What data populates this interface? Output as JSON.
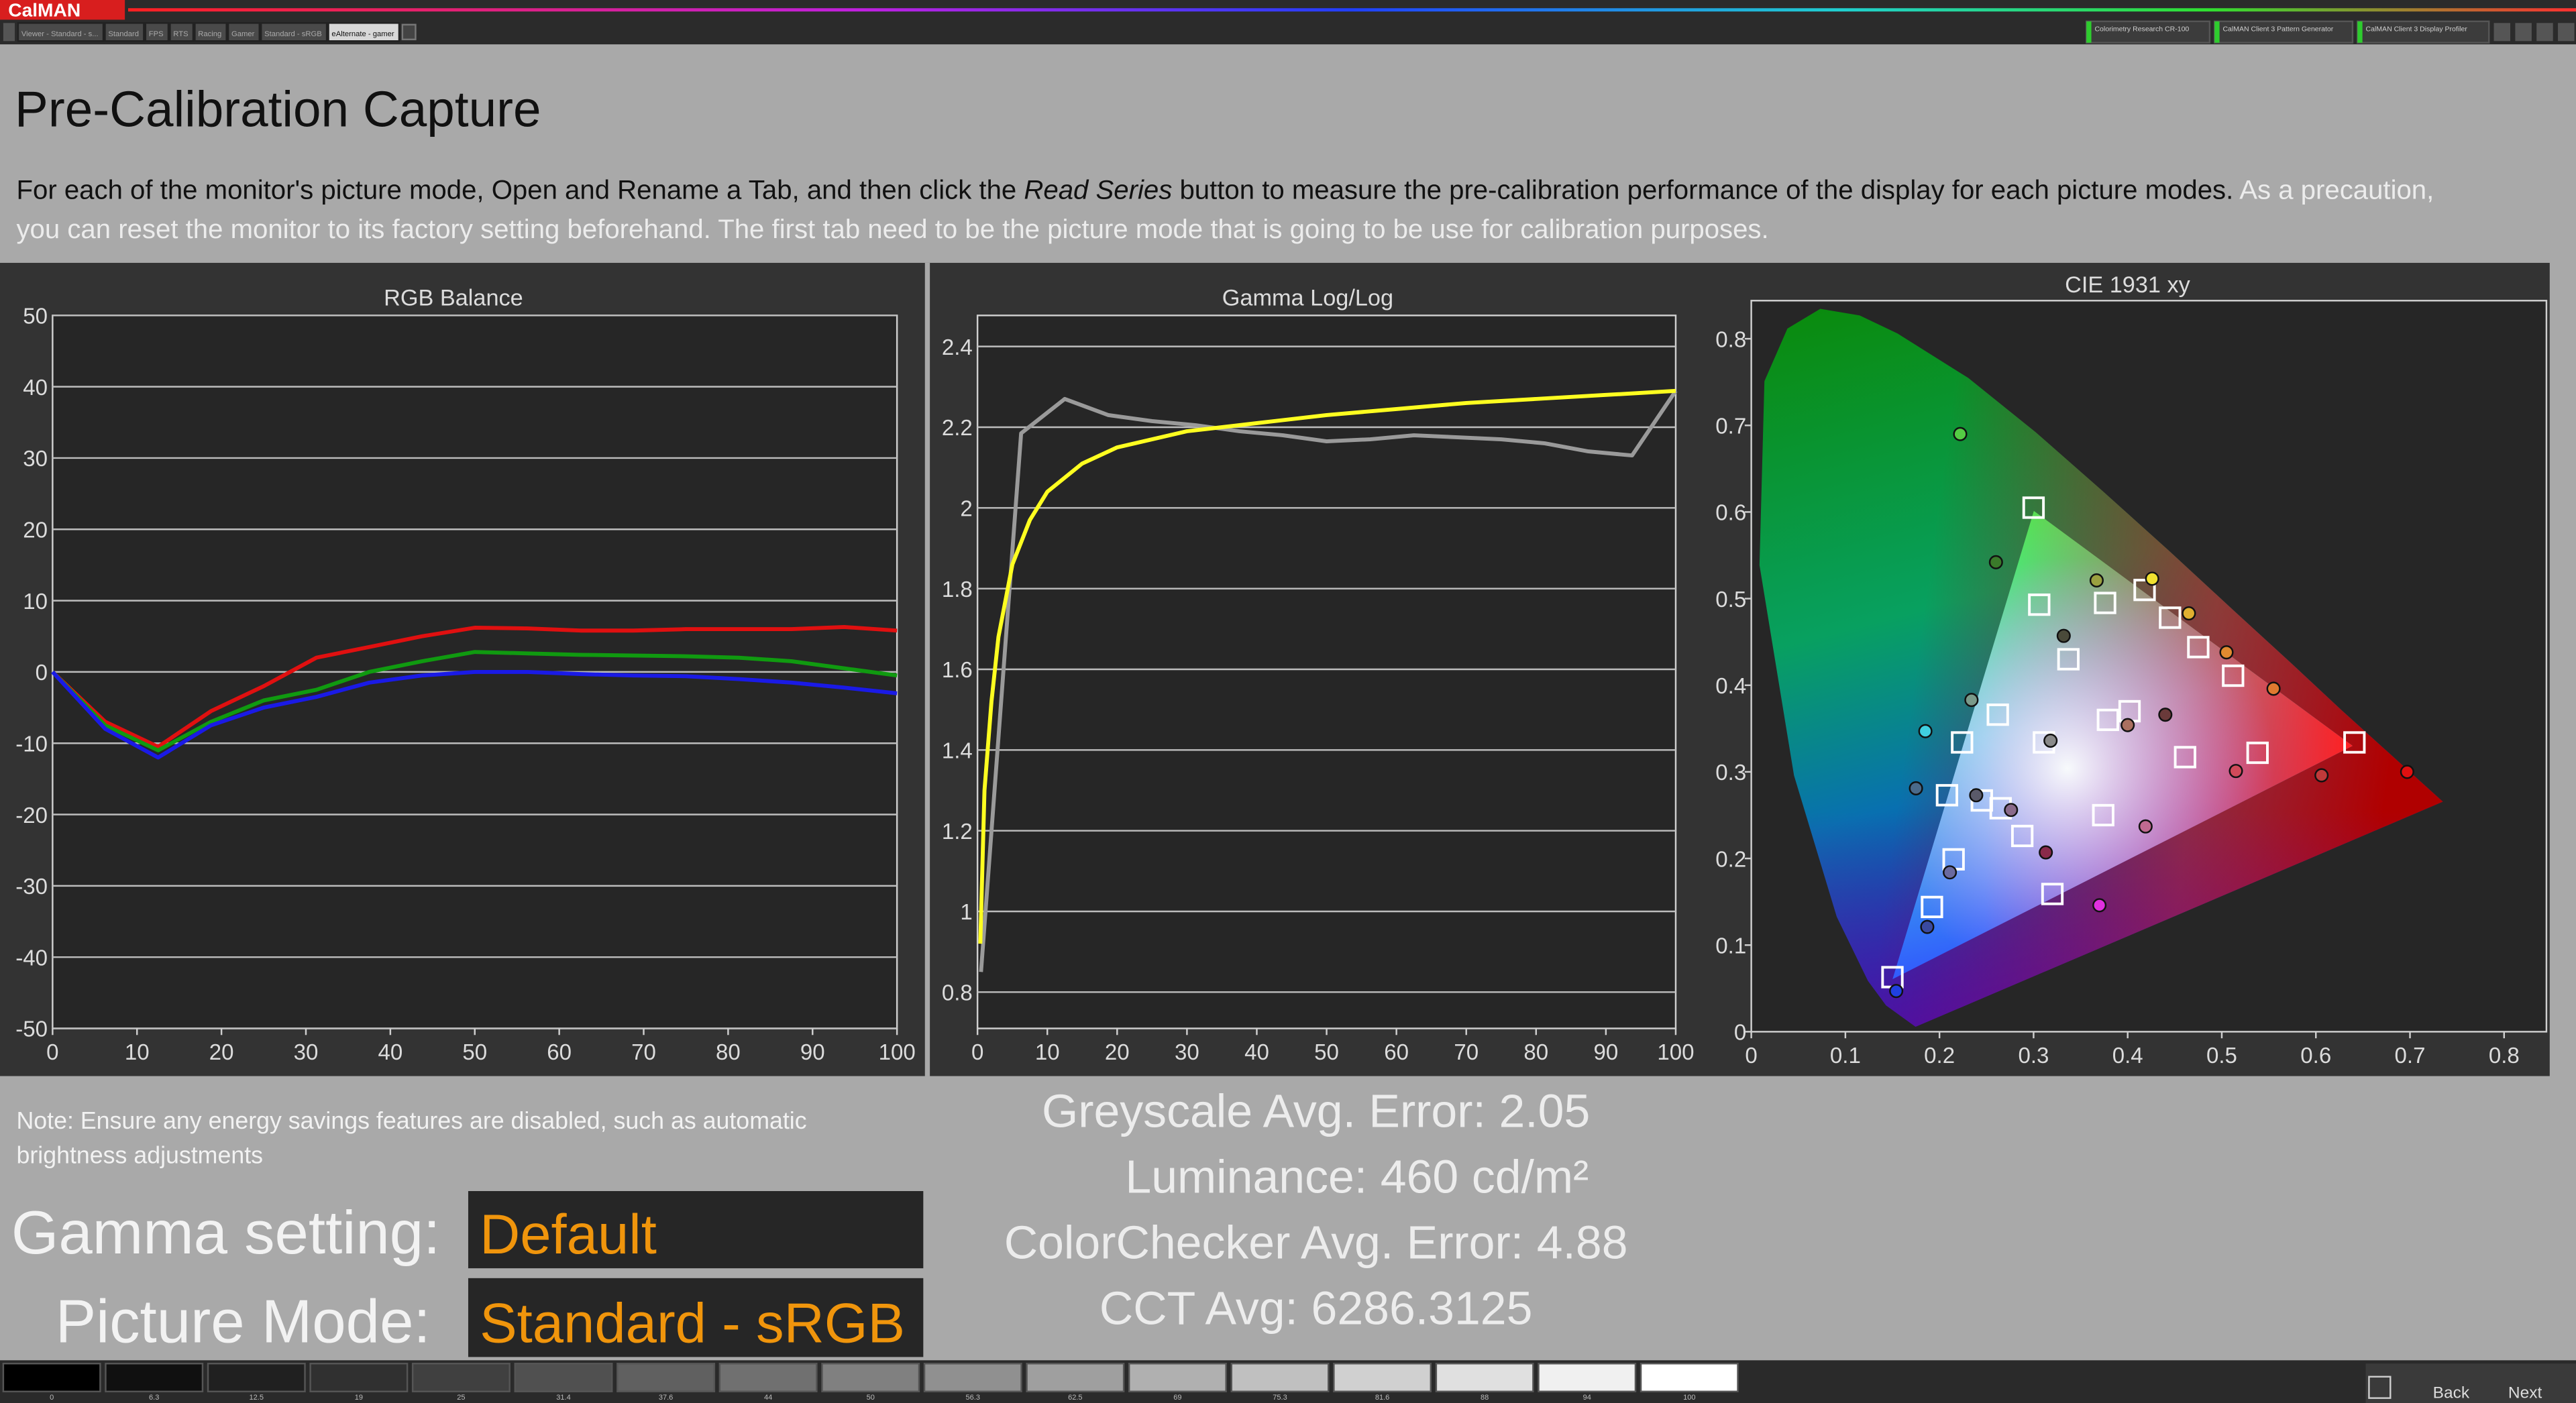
{
  "app": {
    "name": "CalMAN",
    "tabs": [
      "Viewer - Standard - s...",
      "Standard",
      "FPS",
      "RTS",
      "Racing",
      "Gamer",
      "Standard - sRGB",
      "eAlternate - gamer"
    ],
    "devices": [
      "Colorimetry Research CR-100",
      "CalMAN Client 3 Pattern Generator",
      "CalMAN Client 3 Display Profiler"
    ]
  },
  "page": {
    "title": "Pre-Calibration Capture",
    "description": [
      "For each of the monitor's picture mode, Open and Rename a Tab, and then click the ",
      "Read Series",
      " button to measure the pre-calibration performance of the display for each picture modes.",
      " As a precaution, you can reset the monitor to its factory setting beforehand. The first tab need to be the picture mode that is going to be use for calibration purposes."
    ],
    "note": "Note: Ensure any energy savings features are disabled, such as automatic brightness adjustments"
  },
  "chart_data": [
    {
      "type": "line",
      "title": "RGB Balance",
      "x": [
        0,
        6.25,
        12.5,
        18.75,
        25,
        31.25,
        37.5,
        43.75,
        50,
        56.25,
        62.5,
        68.75,
        75,
        81.25,
        87.5,
        93.75,
        100
      ],
      "series": [
        {
          "color": "#e01010",
          "values": [
            0,
            -7,
            -10.5,
            -5.5,
            -2,
            2,
            3.5,
            5,
            6.2,
            6.1,
            5.8,
            5.8,
            6,
            6,
            6,
            6.3,
            5.8
          ]
        },
        {
          "color": "#109a10",
          "values": [
            0,
            -7.5,
            -11,
            -7,
            -4,
            -2.5,
            0,
            1.5,
            2.8,
            2.6,
            2.4,
            2.3,
            2.2,
            2,
            1.5,
            0.5,
            -0.5
          ]
        },
        {
          "color": "#1a1ae6",
          "values": [
            0,
            -8,
            -12,
            -7.5,
            -5,
            -3.5,
            -1.5,
            -0.5,
            0,
            0,
            -0.3,
            -0.5,
            -0.6,
            -1,
            -1.5,
            -2.2,
            -3
          ]
        }
      ],
      "xlim": [
        0,
        100
      ],
      "ylim": [
        -50,
        50
      ],
      "xticks": [
        0,
        10,
        20,
        30,
        40,
        50,
        60,
        70,
        80,
        90,
        100
      ],
      "yticks": [
        -50,
        -40,
        -30,
        -20,
        -10,
        0,
        10,
        20,
        30,
        40,
        50
      ],
      "grid": true
    },
    {
      "type": "line",
      "title": "Gamma Log/Log",
      "series": [
        {
          "color": "#9a9a9a",
          "x": [
            0.5,
            6.25,
            12.5,
            18.75,
            25,
            31.25,
            37.5,
            43.75,
            50,
            56.25,
            62.5,
            68.75,
            75,
            81.25,
            87.5,
            93.75,
            100
          ],
          "values": [
            0.85,
            2.185,
            2.27,
            2.23,
            2.215,
            2.205,
            2.19,
            2.18,
            2.165,
            2.17,
            2.18,
            2.175,
            2.17,
            2.16,
            2.14,
            2.13,
            2.29
          ]
        },
        {
          "color": "#ffff20",
          "x": [
            0.4,
            1,
            2,
            3,
            5,
            7.5,
            10,
            15,
            20,
            30,
            40,
            50,
            60,
            70,
            80,
            90,
            100
          ],
          "values": [
            0.92,
            1.3,
            1.52,
            1.68,
            1.86,
            1.97,
            2.04,
            2.11,
            2.15,
            2.19,
            2.21,
            2.23,
            2.245,
            2.26,
            2.27,
            2.28,
            2.29
          ]
        }
      ],
      "xlim": [
        0,
        100
      ],
      "ylim": [
        0.71,
        2.477
      ],
      "xticks": [
        0,
        10,
        20,
        30,
        40,
        50,
        60,
        70,
        80,
        90,
        100
      ],
      "yticks": [
        0.8,
        1,
        1.2,
        1.4,
        1.6,
        1.8,
        2,
        2.2,
        2.4
      ],
      "grid": true
    },
    {
      "type": "scatter",
      "title": "CIE 1931 xy",
      "series": [
        {
          "marker": "square",
          "color": "#ffffff",
          "x": [
            0.3,
            0.641,
            0.15,
            0.311,
            0.306,
            0.376,
            0.418,
            0.445,
            0.475,
            0.512,
            0.337,
            0.262,
            0.224,
            0.208,
            0.245,
            0.265,
            0.288,
            0.215,
            0.192,
            0.32,
            0.374,
            0.379,
            0.402,
            0.461,
            0.538
          ],
          "values": [
            0.605,
            0.334,
            0.063,
            0.334,
            0.493,
            0.495,
            0.51,
            0.478,
            0.444,
            0.411,
            0.43,
            0.366,
            0.334,
            0.273,
            0.267,
            0.258,
            0.226,
            0.199,
            0.144,
            0.159,
            0.25,
            0.36,
            0.37,
            0.317,
            0.322
          ]
        },
        {
          "marker": "circle",
          "x": [
            0.222,
            0.26,
            0.332,
            0.367,
            0.426,
            0.465,
            0.505,
            0.555,
            0.44,
            0.4,
            0.318,
            0.234,
            0.185,
            0.175,
            0.239,
            0.276,
            0.313,
            0.211,
            0.187,
            0.37,
            0.419,
            0.515,
            0.606,
            0.697,
            0.154
          ],
          "values": [
            0.69,
            0.542,
            0.457,
            0.521,
            0.523,
            0.483,
            0.438,
            0.396,
            0.366,
            0.354,
            0.336,
            0.383,
            0.347,
            0.281,
            0.273,
            0.256,
            0.207,
            0.184,
            0.121,
            0.146,
            0.237,
            0.301,
            0.296,
            0.3,
            0.047
          ],
          "colors": [
            "#55cc44",
            "#3a7a2a",
            "#4a4a3a",
            "#9aa040",
            "#f0e030",
            "#e0b030",
            "#e08a30",
            "#e07a30",
            "#6a3a3a",
            "#aa7060",
            "#8a8a8a",
            "#7a9a8a",
            "#40d0e0",
            "#4a6a8a",
            "#5a5a6a",
            "#8a6a8a",
            "#8a2a4a",
            "#6a6aa0",
            "#3a4aa0",
            "#e030e0",
            "#c06a90",
            "#d04a5a",
            "#c03a3a",
            "#e01010",
            "#2040e0"
          ]
        }
      ],
      "xlim": [
        0,
        0.845
      ],
      "ylim": [
        0,
        0.844
      ],
      "xticks": [
        0,
        0.1,
        0.2,
        0.3,
        0.4,
        0.5,
        0.6,
        0.7,
        0.8
      ],
      "yticks": [
        0,
        0.1,
        0.2,
        0.3,
        0.4,
        0.5,
        0.6,
        0.7,
        0.8
      ],
      "grid": false
    }
  ],
  "stats": [
    {
      "label": "Greyscale Avg. Error:",
      "value": 2.05
    },
    {
      "label": "Luminance:",
      "value": 460,
      "unit": "cd/m²"
    },
    {
      "label": "ColorChecker Avg. Error:",
      "value": 4.88
    },
    {
      "label": "CCT Avg:",
      "value": 6286.3125
    }
  ],
  "settings": [
    {
      "label": "Gamma setting:",
      "value": "Default"
    },
    {
      "label": "Picture Mode:",
      "value": "Standard - sRGB"
    }
  ],
  "swatches": [
    0,
    6.3,
    12.5,
    19,
    25,
    31.4,
    37.6,
    44,
    50,
    56.3,
    62.5,
    69,
    75.3,
    81.6,
    88,
    94,
    100
  ],
  "nav": {
    "back": "Back",
    "next": "Next"
  }
}
